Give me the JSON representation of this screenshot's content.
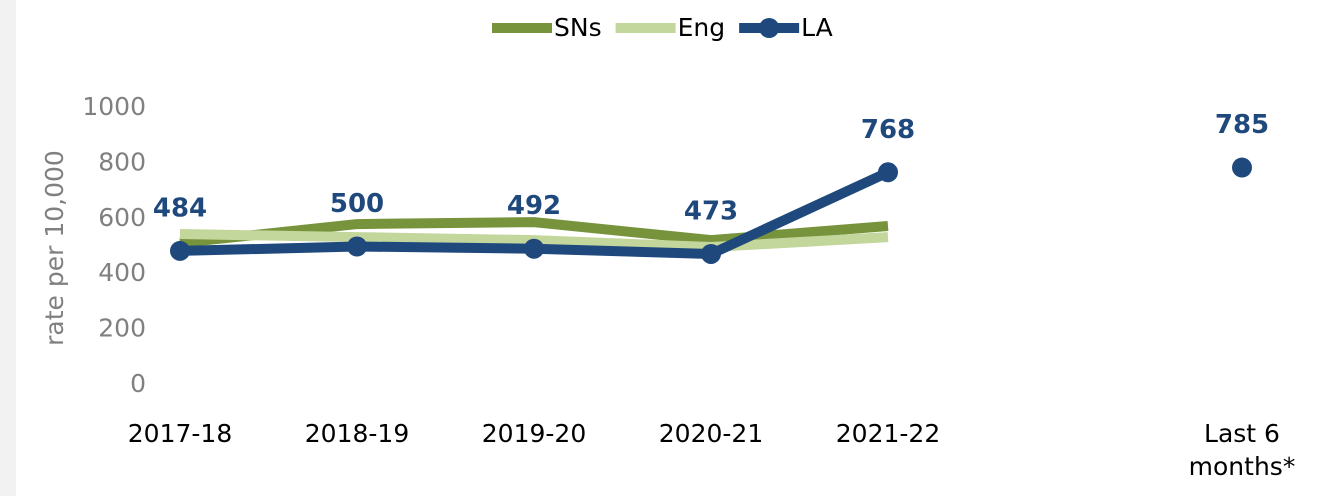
{
  "chart_data": {
    "type": "line",
    "y_label": "rate per 10,000",
    "categories": [
      "2017-18",
      "2018-19",
      "2019-20",
      "2020-21",
      "2021-22",
      null,
      "Last 6 months*"
    ],
    "series": [
      {
        "name": "SNs",
        "color": "#77933c",
        "values": [
          513,
          581,
          588,
          523,
          574,
          null,
          null
        ]
      },
      {
        "name": "Eng",
        "color": "#c3d69b",
        "values": [
          545,
          534,
          523,
          498,
          534,
          null,
          null
        ]
      },
      {
        "name": "LA",
        "color": "#1f497d",
        "values": [
          484,
          500,
          492,
          473,
          768,
          null,
          785
        ],
        "markers": true,
        "data_labels": true
      }
    ],
    "ylim": [
      0,
      1000
    ],
    "yticks": [
      0,
      200,
      400,
      600,
      800,
      1000
    ],
    "grid": false,
    "legend": "top"
  }
}
